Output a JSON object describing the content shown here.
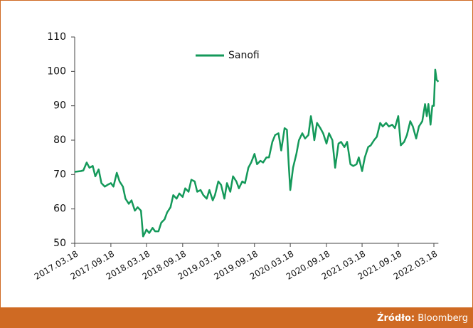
{
  "chart_data": {
    "type": "line",
    "x": [
      "2017.03.18",
      "2017.04.18",
      "2017.05.01",
      "2017.05.18",
      "2017.06.01",
      "2017.06.18",
      "2017.07.01",
      "2017.07.18",
      "2017.08.01",
      "2017.08.18",
      "2017.09.01",
      "2017.09.18",
      "2017.10.01",
      "2017.10.18",
      "2017.11.01",
      "2017.11.18",
      "2017.12.01",
      "2017.12.18",
      "2018.01.01",
      "2018.01.18",
      "2018.02.01",
      "2018.02.18",
      "2018.03.01",
      "2018.03.10",
      "2018.03.18",
      "2018.04.01",
      "2018.04.18",
      "2018.05.01",
      "2018.05.18",
      "2018.06.01",
      "2018.06.18",
      "2018.07.01",
      "2018.07.18",
      "2018.08.01",
      "2018.08.18",
      "2018.09.01",
      "2018.09.18",
      "2018.10.01",
      "2018.10.18",
      "2018.11.01",
      "2018.11.18",
      "2018.12.01",
      "2018.12.18",
      "2019.01.01",
      "2019.01.18",
      "2019.02.01",
      "2019.02.18",
      "2019.03.01",
      "2019.03.18",
      "2019.04.01",
      "2019.04.18",
      "2019.05.01",
      "2019.05.18",
      "2019.06.01",
      "2019.06.18",
      "2019.07.01",
      "2019.07.18",
      "2019.08.01",
      "2019.08.18",
      "2019.09.01",
      "2019.09.18",
      "2019.10.01",
      "2019.10.18",
      "2019.11.01",
      "2019.11.18",
      "2019.12.01",
      "2019.12.18",
      "2020.01.01",
      "2020.01.18",
      "2020.02.01",
      "2020.02.18",
      "2020.03.01",
      "2020.03.10",
      "2020.03.18",
      "2020.04.01",
      "2020.04.18",
      "2020.05.01",
      "2020.05.18",
      "2020.06.01",
      "2020.06.18",
      "2020.07.01",
      "2020.07.10",
      "2020.07.18",
      "2020.08.01",
      "2020.08.18",
      "2020.09.01",
      "2020.09.18",
      "2020.10.01",
      "2020.10.18",
      "2020.11.01",
      "2020.11.18",
      "2020.12.01",
      "2020.12.18",
      "2021.01.01",
      "2021.01.18",
      "2021.02.01",
      "2021.02.18",
      "2021.03.01",
      "2021.03.18",
      "2021.04.01",
      "2021.04.18",
      "2021.05.01",
      "2021.05.18",
      "2021.06.01",
      "2021.06.18",
      "2021.07.01",
      "2021.07.18",
      "2021.08.01",
      "2021.08.18",
      "2021.09.01",
      "2021.09.18",
      "2021.10.01",
      "2021.10.18",
      "2021.11.01",
      "2021.11.18",
      "2021.12.01",
      "2021.12.18",
      "2022.01.01",
      "2022.01.18",
      "2022.02.01",
      "2022.02.10",
      "2022.02.18",
      "2022.03.01",
      "2022.03.10",
      "2022.03.18",
      "2022.03.25",
      "2022.04.01",
      "2022.04.10"
    ],
    "series": [
      {
        "name": "Sanofi",
        "color": "#14995a",
        "values": [
          70.8,
          71,
          71.2,
          73.5,
          72,
          72.5,
          69.5,
          71.5,
          67.5,
          66.5,
          67,
          67.5,
          66.5,
          70.5,
          68,
          66.5,
          63,
          61.5,
          62.5,
          59.5,
          60.5,
          59.5,
          52,
          53,
          54,
          53,
          54.5,
          53.5,
          53.5,
          56,
          57,
          59,
          60.5,
          64,
          63,
          64.5,
          63.5,
          66,
          65,
          68.5,
          68,
          65,
          65.5,
          64,
          63,
          65.5,
          62.5,
          64,
          68,
          67,
          63,
          67.5,
          65,
          69.5,
          68,
          66,
          68,
          67.5,
          72,
          73.5,
          76,
          73,
          74,
          73.5,
          75,
          75,
          79.5,
          81.5,
          82,
          77,
          83.5,
          83,
          73,
          65.5,
          72,
          76,
          80,
          82,
          80.5,
          81.5,
          87,
          84,
          80,
          85,
          83.5,
          82,
          79,
          82,
          80,
          72,
          79,
          79.5,
          78,
          79.5,
          73,
          72.5,
          73,
          75,
          71,
          75,
          78,
          78.5,
          80,
          81,
          85,
          84,
          85,
          84,
          84.5,
          83.5,
          87,
          78.5,
          79.5,
          81.5,
          85.5,
          84,
          80.5,
          84,
          85.5,
          90.5,
          87,
          90.5,
          84.5,
          90,
          90,
          100.5,
          97.5,
          97
        ]
      }
    ],
    "xlim": [
      "2017.03.18",
      "2022.04.10"
    ],
    "xticks": [
      "2017.03.18",
      "2017.09.18",
      "2018.03.18",
      "2018.09.18",
      "2019.03.18",
      "2019.09.18",
      "2020.03.18",
      "2020.09.18",
      "2021.03.18",
      "2021.09.18",
      "2022.03.18"
    ],
    "ylim": [
      50,
      110
    ],
    "yticks": [
      50,
      60,
      70,
      80,
      90,
      100,
      110
    ],
    "grid": false,
    "legend": "top",
    "source_label": "Źródło:",
    "source": "Bloomberg"
  }
}
